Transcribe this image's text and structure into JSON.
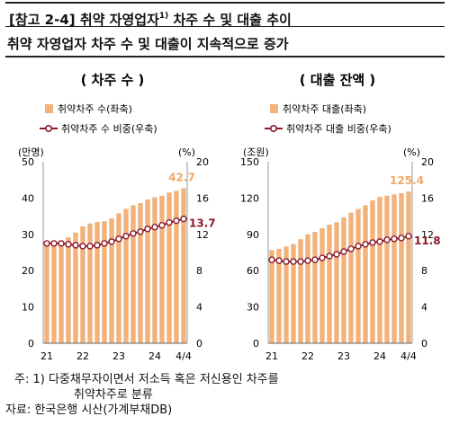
{
  "header": {
    "title": "[참고 2-4] 취약 자영업자",
    "title_sup": "1)",
    "title_after": " 차주 수 및 대출 추이",
    "subtitle": "취약 자영업자 차주 수 및 대출이 지속적으로 증가"
  },
  "colors": {
    "bar": "#f2b27c",
    "line": "#8b1a2b",
    "bar_label": "#f0a86a"
  },
  "chart_data": [
    {
      "type": "bar",
      "title": "( 차주 수 )",
      "legend": [
        "취약차주 수(좌축)",
        "취약차주 수 비중(우축)"
      ],
      "left_unit": "(만명)",
      "right_unit": "(%)",
      "x_tick_labels": [
        "21",
        "22",
        "23",
        "24",
        "4/4"
      ],
      "x_tick_index": [
        0,
        5,
        10,
        15,
        19
      ],
      "ylim_left": [
        0,
        50
      ],
      "ylim_right": [
        0,
        20
      ],
      "yticks_left": [
        0,
        10,
        20,
        30,
        40,
        50
      ],
      "yticks_right": [
        0,
        4,
        8,
        12,
        16,
        20
      ],
      "series": [
        {
          "name": "취약차주 수(좌축)",
          "axis": "left",
          "values": [
            27.8,
            28.0,
            28.3,
            29.2,
            30.5,
            32.2,
            33.0,
            33.4,
            33.6,
            34.4,
            35.8,
            37.0,
            38.0,
            38.6,
            39.6,
            40.2,
            40.6,
            41.5,
            42.0,
            42.7
          ]
        },
        {
          "name": "취약차주 수 비중(우축)",
          "axis": "right",
          "values": [
            11.0,
            11.0,
            11.0,
            10.9,
            10.8,
            10.7,
            10.7,
            10.8,
            11.0,
            11.2,
            11.5,
            11.8,
            12.1,
            12.3,
            12.6,
            12.8,
            13.0,
            13.3,
            13.5,
            13.7
          ]
        }
      ],
      "annotations": {
        "bar_last": "42.7",
        "line_last": "13.7"
      }
    },
    {
      "type": "bar",
      "title": "( 대출 잔액 )",
      "legend": [
        "취약차주 대출(좌축)",
        "취약차주 대출 비중(우축)"
      ],
      "left_unit": "(조원)",
      "right_unit": "(%)",
      "x_tick_labels": [
        "21",
        "22",
        "23",
        "24",
        "4/4"
      ],
      "x_tick_index": [
        0,
        5,
        10,
        15,
        19
      ],
      "ylim_left": [
        0,
        150
      ],
      "ylim_right": [
        0,
        20
      ],
      "yticks_left": [
        0,
        30,
        60,
        90,
        120,
        150
      ],
      "yticks_right": [
        0,
        4,
        8,
        12,
        16,
        20
      ],
      "series": [
        {
          "name": "취약차주 대출(좌축)",
          "axis": "left",
          "values": [
            77,
            78,
            80,
            82,
            86,
            90,
            92,
            95,
            98,
            100,
            104,
            108,
            111,
            114,
            118,
            121,
            122,
            123,
            124,
            125.4
          ]
        },
        {
          "name": "취약차주 대출 비중(우축)",
          "axis": "right",
          "values": [
            9.2,
            9.1,
            9.0,
            9.0,
            9.0,
            9.1,
            9.2,
            9.4,
            9.6,
            9.8,
            10.1,
            10.4,
            10.7,
            10.9,
            11.1,
            11.2,
            11.4,
            11.5,
            11.6,
            11.8
          ]
        }
      ],
      "annotations": {
        "bar_last": "125.4",
        "line_last": "11.8"
      }
    }
  ],
  "notes": {
    "note_line1": "주: 1) 다중채무자이면서 저소득 혹은 저신용인 차주를",
    "note_line2": "취약차주로 분류",
    "source": "자료: 한국은행 시산(가계부채DB)"
  }
}
